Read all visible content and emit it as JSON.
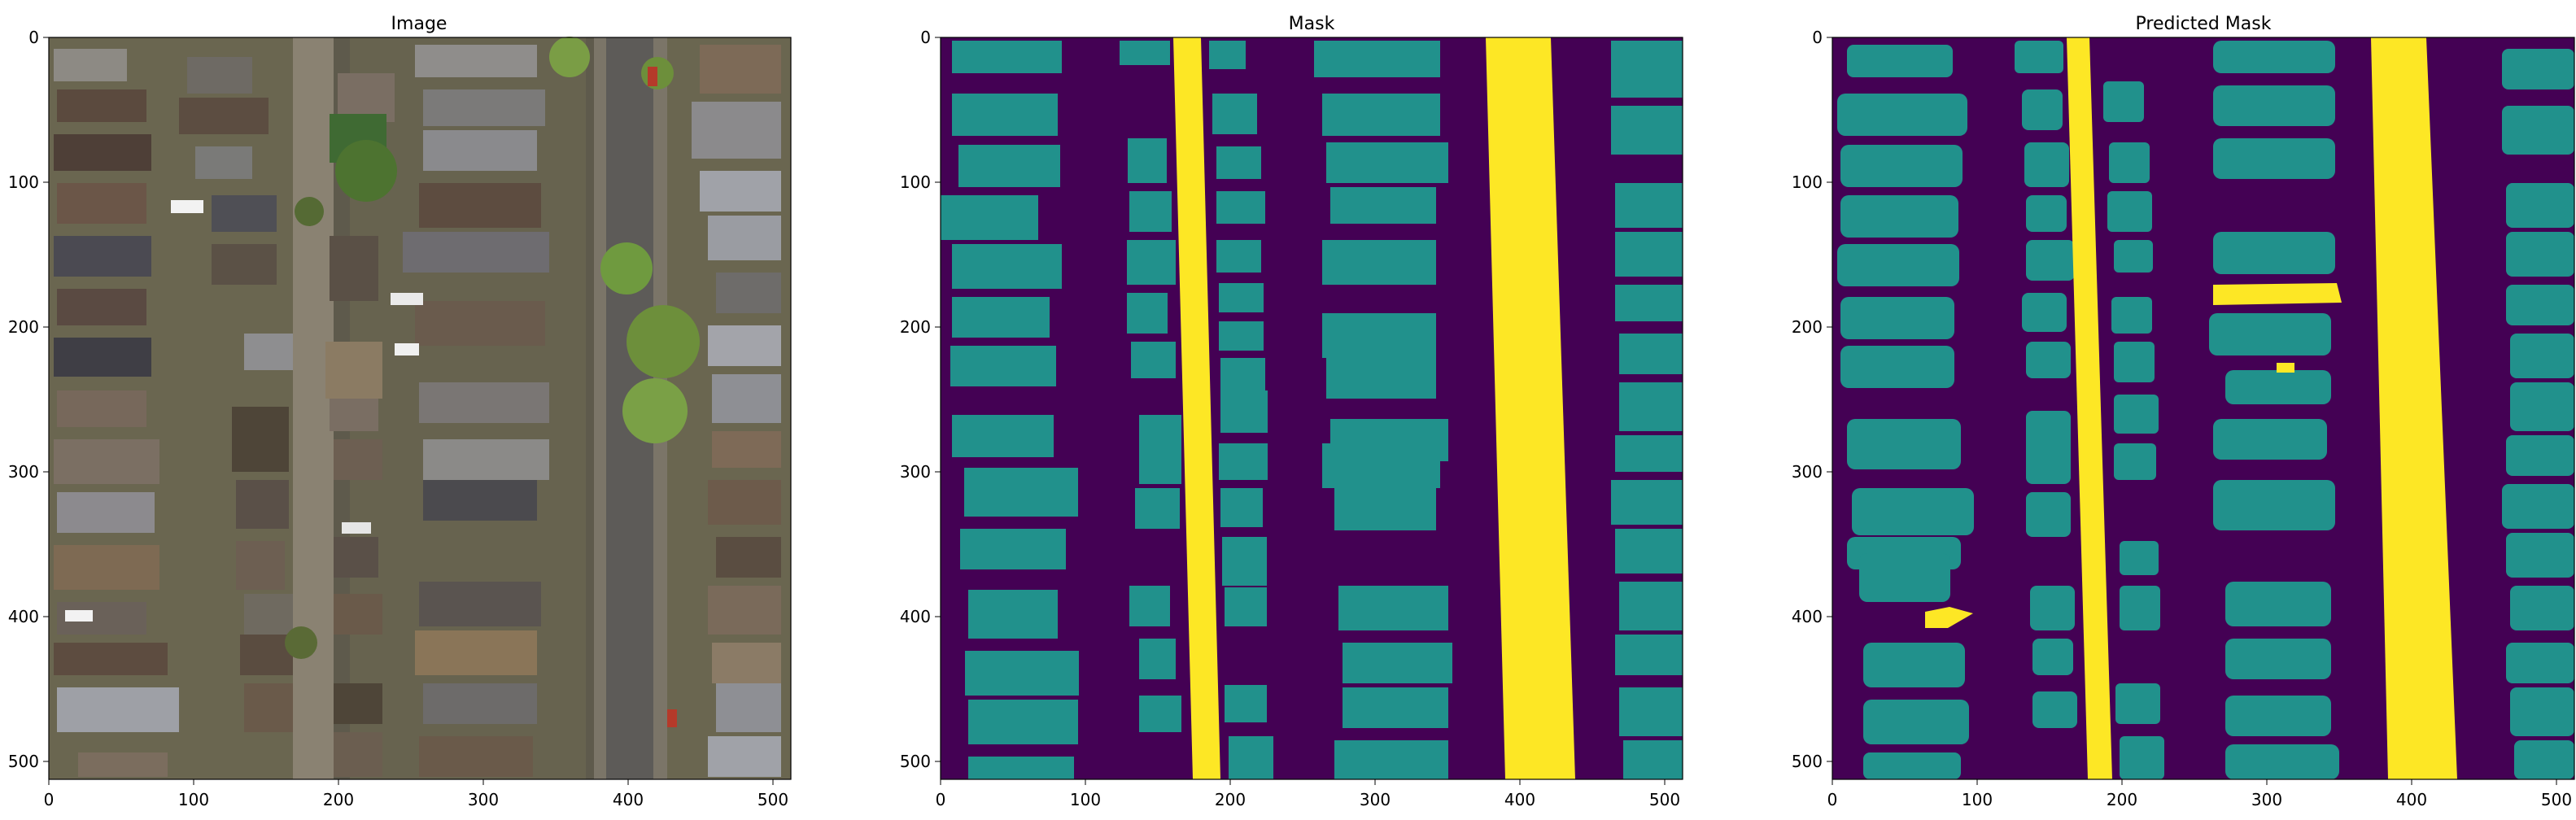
{
  "figure": {
    "panels": [
      {
        "id": "image",
        "title": "Image",
        "kind": "aerial-photo",
        "xticks": [
          "0",
          "100",
          "200",
          "300",
          "400",
          "500"
        ],
        "yticks": [
          "0",
          "100",
          "200",
          "300",
          "400",
          "500"
        ]
      },
      {
        "id": "mask",
        "title": "Mask",
        "kind": "segmentation-mask",
        "xticks": [
          "0",
          "100",
          "200",
          "300",
          "400",
          "500"
        ],
        "yticks": [
          "0",
          "100",
          "200",
          "300",
          "400",
          "500"
        ]
      },
      {
        "id": "pred",
        "title": "Predicted Mask",
        "kind": "segmentation-mask",
        "xticks": [
          "0",
          "100",
          "200",
          "300",
          "400",
          "500"
        ],
        "yticks": [
          "0",
          "100",
          "200",
          "300",
          "400",
          "500"
        ]
      }
    ],
    "axis_range": [
      0,
      512
    ],
    "colors": {
      "background": "#440154",
      "building": "#21918c",
      "road": "#fde725",
      "photo_base": "#5e5a4c",
      "photo_street": "#857d6e",
      "photo_tree": "#6d8f3b"
    }
  }
}
